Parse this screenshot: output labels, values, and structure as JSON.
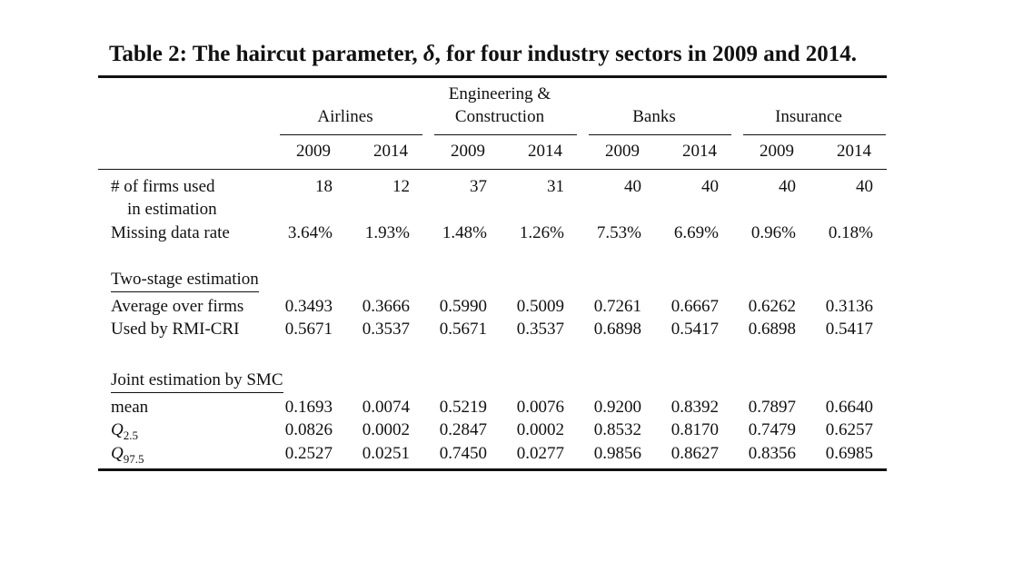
{
  "caption": {
    "label": "Table 2:",
    "text_before": "The haircut parameter,",
    "symbol": "δ",
    "text_after": ", for four industry sectors in 2009 and 2014."
  },
  "groups": [
    {
      "line1": "",
      "line2": "Airlines"
    },
    {
      "line1": "Engineering &",
      "line2": "Construction"
    },
    {
      "line1": "",
      "line2": "Banks"
    },
    {
      "line1": "",
      "line2": "Insurance"
    }
  ],
  "years": [
    "2009",
    "2014",
    "2009",
    "2014",
    "2009",
    "2014",
    "2009",
    "2014"
  ],
  "basic_rows": [
    {
      "label": "# of firms used",
      "label2": "in estimation",
      "values": [
        "18",
        "12",
        "37",
        "31",
        "40",
        "40",
        "40",
        "40"
      ]
    },
    {
      "label": "Missing data rate",
      "label2": "",
      "values": [
        "3.64%",
        "1.93%",
        "1.48%",
        "1.26%",
        "7.53%",
        "6.69%",
        "0.96%",
        "0.18%"
      ]
    }
  ],
  "two_stage": {
    "title": "Two-stage estimation",
    "rows": [
      {
        "label": "Average over firms",
        "values": [
          "0.3493",
          "0.3666",
          "0.5990",
          "0.5009",
          "0.7261",
          "0.6667",
          "0.6262",
          "0.3136"
        ]
      },
      {
        "label": "Used by RMI-CRI",
        "values": [
          "0.5671",
          "0.3537",
          "0.5671",
          "0.3537",
          "0.6898",
          "0.5417",
          "0.6898",
          "0.5417"
        ]
      }
    ]
  },
  "joint": {
    "title": "Joint estimation by SMC",
    "rows": [
      {
        "label": "mean",
        "base": "",
        "sub": "",
        "values": [
          "0.1693",
          "0.0074",
          "0.5219",
          "0.0076",
          "0.9200",
          "0.8392",
          "0.7897",
          "0.6640"
        ]
      },
      {
        "label": "",
        "base": "Q",
        "sub": "2.5",
        "values": [
          "0.0826",
          "0.0002",
          "0.2847",
          "0.0002",
          "0.8532",
          "0.8170",
          "0.7479",
          "0.6257"
        ]
      },
      {
        "label": "",
        "base": "Q",
        "sub": "97.5",
        "values": [
          "0.2527",
          "0.0251",
          "0.7450",
          "0.0277",
          "0.9856",
          "0.8627",
          "0.8356",
          "0.6985"
        ]
      }
    ]
  }
}
